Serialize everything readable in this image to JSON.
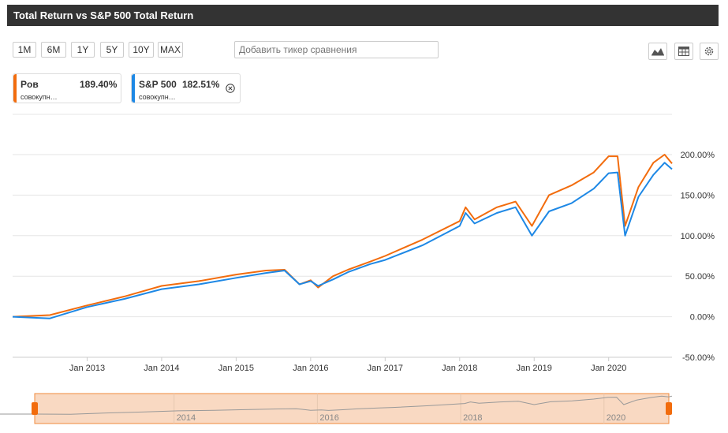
{
  "title": "Total Return vs S&P 500 Total Return",
  "ranges": [
    "1M",
    "6M",
    "1Y",
    "5Y",
    "10Y",
    "MAX"
  ],
  "compare_placeholder": "Добавить тикер сравнения",
  "toolbar_icons": [
    "chart-type-icon",
    "table-icon",
    "settings-icon"
  ],
  "legend": [
    {
      "name": "Pов",
      "value": "189.40%",
      "sub": "совокупн…",
      "color": "#f26c0d"
    },
    {
      "name": "S&P 500",
      "value": "182.51%",
      "sub": "совокупн…",
      "color": "#1e88e5"
    }
  ],
  "chart_data": {
    "type": "line",
    "ylim": [
      -50,
      200
    ],
    "y_ticks": [
      "-50.00%",
      "0.00%",
      "50.00%",
      "100.00%",
      "150.00%",
      "200.00%"
    ],
    "x_ticks": [
      "Jan 2013",
      "Jan 2014",
      "Jan 2015",
      "Jan 2016",
      "Jan 2017",
      "Jan 2018",
      "Jan 2019",
      "Jan 2020"
    ],
    "x": [
      2012.0,
      2012.5,
      2013.0,
      2013.5,
      2014.0,
      2014.5,
      2015.0,
      2015.4,
      2015.65,
      2015.85,
      2016.0,
      2016.1,
      2016.3,
      2016.5,
      2016.8,
      2017.0,
      2017.5,
      2018.0,
      2018.08,
      2018.2,
      2018.5,
      2018.75,
      2018.97,
      2019.2,
      2019.5,
      2019.8,
      2020.0,
      2020.12,
      2020.22,
      2020.4,
      2020.6,
      2020.75,
      2020.85
    ],
    "series": [
      {
        "name": "Pов",
        "color": "#f26c0d",
        "values": [
          0,
          2,
          14,
          25,
          38,
          44,
          52,
          57,
          58,
          40,
          45,
          36,
          50,
          58,
          68,
          75,
          95,
          118,
          135,
          120,
          135,
          142,
          112,
          150,
          162,
          178,
          198,
          198,
          112,
          160,
          190,
          200,
          189
        ]
      },
      {
        "name": "S&P 500",
        "color": "#1e88e5",
        "values": [
          0,
          -2,
          12,
          22,
          34,
          40,
          48,
          54,
          57,
          40,
          44,
          38,
          46,
          55,
          65,
          70,
          88,
          112,
          128,
          115,
          128,
          135,
          100,
          130,
          140,
          158,
          177,
          178,
          100,
          148,
          175,
          190,
          182
        ]
      }
    ]
  },
  "navigator": {
    "x_ticks": [
      "2014",
      "2016",
      "2018",
      "2020"
    ]
  }
}
